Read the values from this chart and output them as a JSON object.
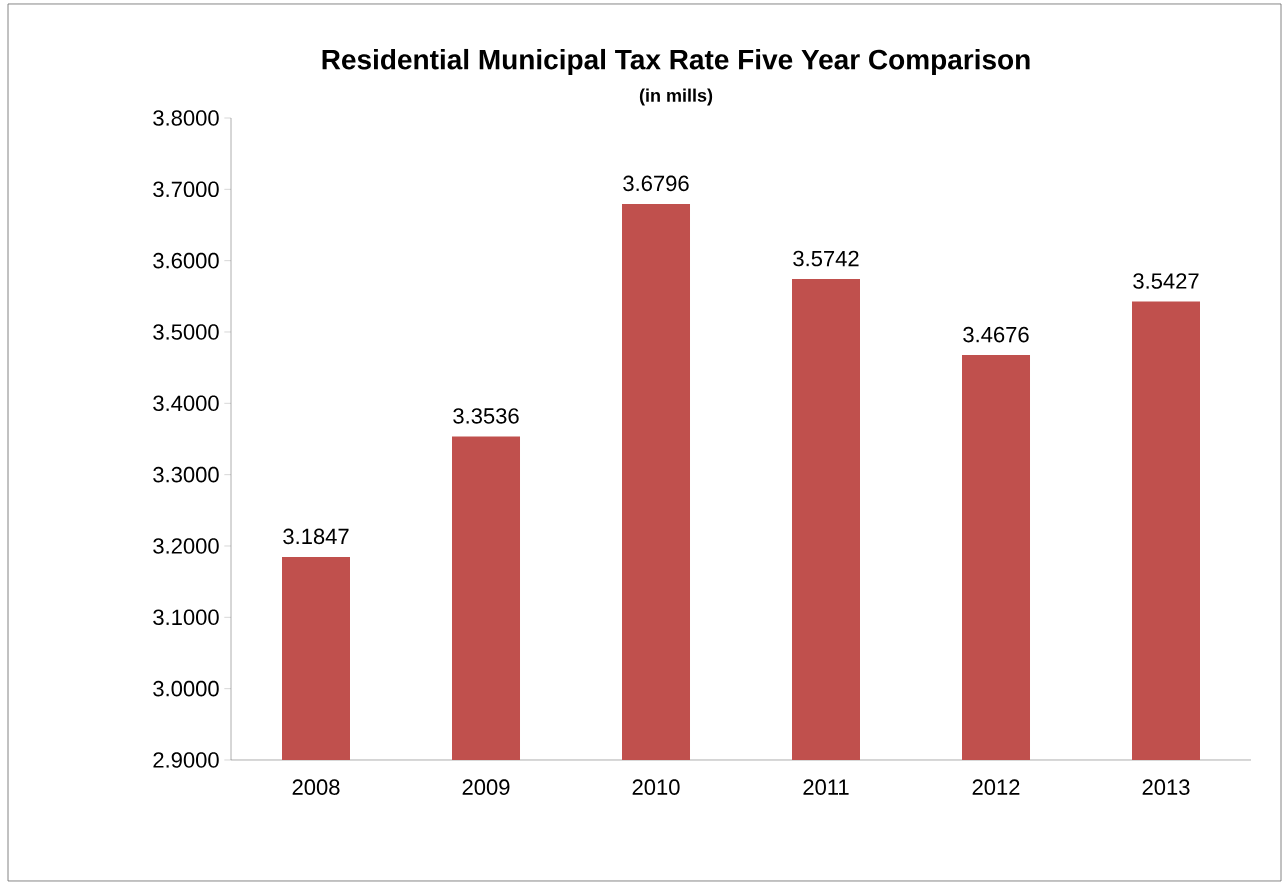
{
  "chart_data": {
    "type": "bar",
    "title": "Residential Municipal Tax Rate Five Year Comparison",
    "subtitle": "(in mills)",
    "categories": [
      "2008",
      "2009",
      "2010",
      "2011",
      "2012",
      "2013"
    ],
    "values": [
      3.1847,
      3.3536,
      3.6796,
      3.5742,
      3.4676,
      3.5427
    ],
    "color": "#c0504d",
    "data_labels": true,
    "ylim": [
      2.9,
      3.8
    ],
    "yticks": [
      {
        "value": 2.9,
        "label": "2.9000"
      },
      {
        "value": 3.0,
        "label": "3.0000"
      },
      {
        "value": 3.1,
        "label": "3.1000"
      },
      {
        "value": 3.2,
        "label": "3.2000"
      },
      {
        "value": 3.3,
        "label": "3.3000"
      },
      {
        "value": 3.4,
        "label": "3.4000"
      },
      {
        "value": 3.5,
        "label": "3.5000"
      },
      {
        "value": 3.6,
        "label": "3.6000"
      },
      {
        "value": 3.7,
        "label": "3.7000"
      },
      {
        "value": 3.8,
        "label": "3.8000"
      }
    ]
  }
}
